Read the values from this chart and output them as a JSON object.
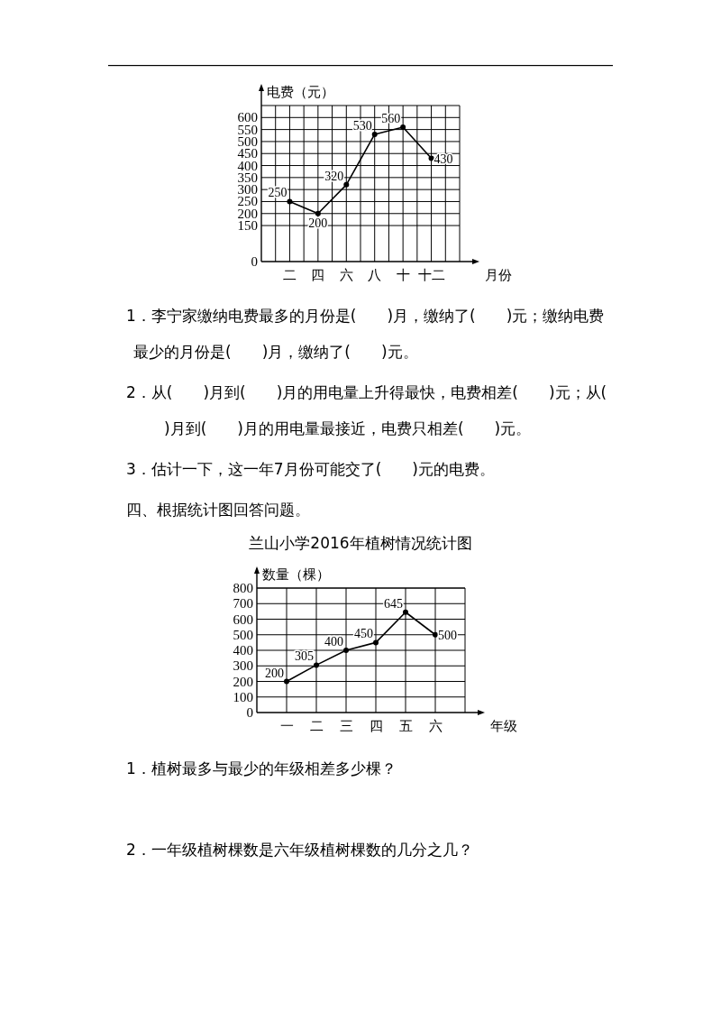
{
  "chart_data": [
    {
      "type": "line",
      "ylabel": "电费（元）",
      "xlabel": "月份",
      "categories": [
        null,
        "二",
        null,
        "四",
        null,
        "六",
        null,
        "八",
        null,
        "十",
        null,
        "十二",
        null
      ],
      "series": [
        {
          "color": "#000000",
          "values": [
            null,
            250,
            null,
            200,
            null,
            320,
            null,
            530,
            null,
            560,
            null,
            430,
            null
          ]
        }
      ],
      "ylim": [
        0,
        650
      ],
      "yticks": [
        0,
        150,
        200,
        250,
        300,
        350,
        400,
        450,
        500,
        550,
        600
      ],
      "grid": true,
      "marker": "circle",
      "line_style": "solid",
      "data_labels": true,
      "annotations": [
        "1．李宁家缴纳电费最多的月份是(　　)月，缴纳了(　　)元；缴纳电费最少的月份是(　　)月，缴纳了(　　)元。",
        "2．从(　　)月到(　　)月的用电量上升得最快，电费相差(　　)元；从(　　)月到(　　)月的用电量最接近，电费只相差(　　)元。",
        "3．估计一下，这一年7月份可能交了(　　)元的电费。",
        "四、根据统计图回答问题。"
      ]
    },
    {
      "type": "line",
      "title": "兰山小学2016年植树情况统计图",
      "ylabel": "数量（棵）",
      "xlabel": "年级",
      "categories": [
        "一",
        "二",
        "三",
        "四",
        "五",
        "六"
      ],
      "series": [
        {
          "color": "#000000",
          "values": [
            200,
            305,
            400,
            450,
            645,
            500
          ]
        }
      ],
      "ylim": [
        0,
        800
      ],
      "yticks": [
        0,
        100,
        200,
        300,
        400,
        500,
        600,
        700,
        800
      ],
      "grid": true,
      "marker": "circle",
      "line_style": "solid",
      "data_labels": true,
      "annotations": [
        "1．植树最多与最少的年级相差多少棵？",
        "2．一年级植树棵数是六年级植树棵数的几分之几？"
      ]
    }
  ]
}
